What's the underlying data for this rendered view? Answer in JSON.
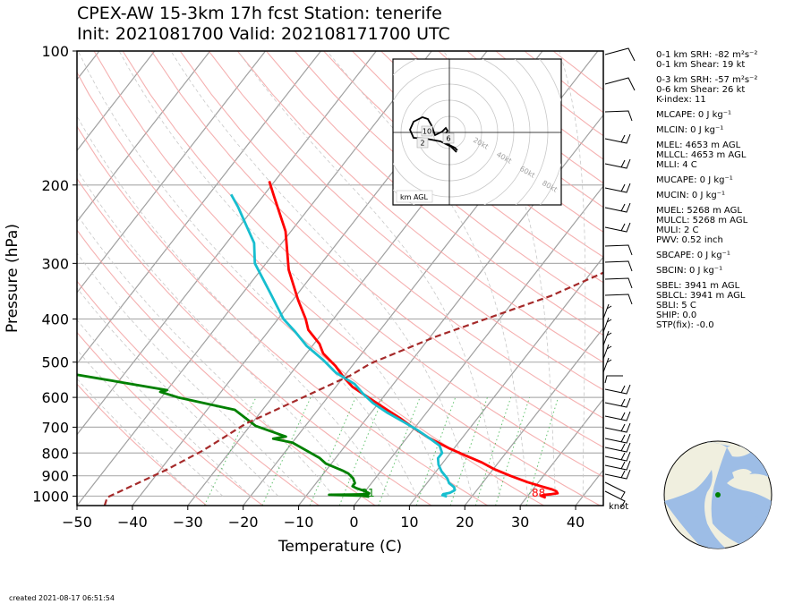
{
  "title_line1": "CPEX-AW 15-3km  17h fcst  Station: tenerife",
  "title_line2": "Init: 2021081700  Valid: 202108171700 UTC",
  "created": "created 2021-08-17 06:51:54",
  "stats": [
    {
      "text": "0-1 km SRH: -82 m²s⁻²",
      "gap": false
    },
    {
      "text": "0-1 km Shear: 19 kt",
      "gap": false
    },
    {
      "text": "0-3 km SRH: -57 m²s⁻²",
      "gap": true
    },
    {
      "text": "0-6 km Shear: 26 kt",
      "gap": false
    },
    {
      "text": "K-index: 11",
      "gap": false
    },
    {
      "text": "MLCAPE: 0 J kg⁻¹",
      "gap": true
    },
    {
      "text": "MLCIN: 0 J kg⁻¹",
      "gap": true
    },
    {
      "text": "MLEL: 4653 m AGL",
      "gap": true
    },
    {
      "text": "MLLCL: 4653 m AGL",
      "gap": false
    },
    {
      "text": "MLLI: 4 C",
      "gap": false
    },
    {
      "text": "MUCAPE: 0 J kg⁻¹",
      "gap": true
    },
    {
      "text": "MUCIN: 0 J kg⁻¹",
      "gap": true
    },
    {
      "text": "MUEL: 5268 m AGL",
      "gap": true
    },
    {
      "text": "MULCL: 5268 m AGL",
      "gap": false
    },
    {
      "text": "MULI: 2 C",
      "gap": false
    },
    {
      "text": "PWV: 0.52 inch",
      "gap": false
    },
    {
      "text": "SBCAPE: 0 J kg⁻¹",
      "gap": true
    },
    {
      "text": "SBCIN: 0 J kg⁻¹",
      "gap": true
    },
    {
      "text": "SBEL: 3941 m AGL",
      "gap": true
    },
    {
      "text": "SBLCL: 3941 m AGL",
      "gap": false
    },
    {
      "text": "SBLI: 5 C",
      "gap": false
    },
    {
      "text": "SHIP: 0.0",
      "gap": false
    },
    {
      "text": "STP(fix): -0.0",
      "gap": false
    }
  ],
  "chart_data": {
    "type": "line",
    "subtype": "skew-T log-P",
    "xlabel": "Temperature (C)",
    "ylabel": "Pressure (hPa)",
    "xlim": [
      -50,
      45
    ],
    "ylim": [
      1050,
      100
    ],
    "log_y": true,
    "xticks": [
      "−50",
      "−40",
      "−30",
      "−20",
      "−10",
      "0",
      "10",
      "20",
      "30",
      "40"
    ],
    "yticks": [
      "100",
      "200",
      "300",
      "400",
      "500",
      "600",
      "700",
      "800",
      "900",
      "1000"
    ],
    "colors": {
      "temperature": "#ff0000",
      "dewpoint": "#008000",
      "wetbulb": "#17becf",
      "parcel": "#a52a2a",
      "isotherm": "#a0a0a0",
      "dry_adiabat": "#f4a7a7",
      "mixing_ratio": "#3cb44b"
    },
    "series": [
      {
        "key": "temperature",
        "points": [
          [
            33.5,
            1008
          ],
          [
            32.3,
            998
          ],
          [
            33,
            993
          ],
          [
            34,
            990
          ],
          [
            35,
            985
          ],
          [
            34.5,
            975
          ],
          [
            33.5,
            966
          ],
          [
            31,
            950
          ],
          [
            28,
            930
          ],
          [
            24,
            900
          ],
          [
            20,
            868
          ],
          [
            17,
            840
          ],
          [
            13,
            810
          ],
          [
            9,
            780
          ],
          [
            4,
            740
          ],
          [
            -0.5,
            700
          ],
          [
            -4,
            668
          ],
          [
            -8,
            636
          ],
          [
            -12,
            605
          ],
          [
            -17,
            568
          ],
          [
            -20,
            540
          ],
          [
            -23,
            510
          ],
          [
            -27,
            478
          ],
          [
            -29,
            455
          ],
          [
            -33,
            423
          ],
          [
            -35,
            400
          ],
          [
            -39,
            363
          ],
          [
            -45,
            310
          ],
          [
            -51,
            254
          ],
          [
            -58,
            212
          ],
          [
            -61,
            196
          ]
        ]
      },
      {
        "key": "wetbulb",
        "points": [
          [
            15.5,
            1002
          ],
          [
            14.5,
            995
          ],
          [
            14.5,
            990
          ],
          [
            15.5,
            983
          ],
          [
            16,
            970
          ],
          [
            15.5,
            955
          ],
          [
            14,
            935
          ],
          [
            13,
            912
          ],
          [
            11,
            880
          ],
          [
            9.5,
            850
          ],
          [
            8.5,
            822
          ],
          [
            8.5,
            800
          ],
          [
            7,
            770
          ],
          [
            4,
            740
          ],
          [
            1,
            712
          ],
          [
            -3,
            680
          ],
          [
            -7,
            650
          ],
          [
            -11,
            618
          ],
          [
            -14,
            590
          ],
          [
            -17,
            560
          ],
          [
            -22,
            528
          ],
          [
            -26,
            495
          ],
          [
            -31,
            460
          ],
          [
            -35,
            428
          ],
          [
            -39,
            400
          ],
          [
            -45,
            350
          ],
          [
            -52,
            300
          ],
          [
            -55,
            270
          ],
          [
            -63,
            224
          ],
          [
            -66,
            210
          ]
        ]
      },
      {
        "key": "dewpoint",
        "points": [
          [
            1.5,
            1003
          ],
          [
            0,
            998
          ],
          [
            -6,
            993
          ],
          [
            -2,
            992
          ],
          [
            1,
            990
          ],
          [
            1,
            985
          ],
          [
            0,
            975
          ],
          [
            -2,
            960
          ],
          [
            -3,
            950
          ],
          [
            -3,
            935
          ],
          [
            -4,
            912
          ],
          [
            -5.5,
            890
          ],
          [
            -7,
            876
          ],
          [
            -11,
            845
          ],
          [
            -13,
            820
          ],
          [
            -20,
            758
          ],
          [
            -24,
            743
          ],
          [
            -22,
            735
          ],
          [
            -29,
            695
          ],
          [
            -35,
            640
          ],
          [
            -47,
            600
          ],
          [
            -51,
            583
          ],
          [
            -50,
            578
          ],
          [
            -70,
            530
          ],
          [
            -84,
            430
          ],
          [
            -85,
            426
          ],
          [
            -89,
            380
          ],
          [
            -93,
            340
          ],
          [
            -96,
            320
          ],
          [
            -102,
            290
          ],
          [
            -101,
            283
          ],
          [
            -102,
            272
          ]
        ]
      },
      {
        "key": "parcel",
        "points": [
          [
            -45,
            1050
          ],
          [
            -45.7,
            1006
          ],
          [
            -39,
            875
          ],
          [
            -35,
            789
          ],
          [
            -33,
            736
          ],
          [
            -31,
            686
          ],
          [
            -29,
            659
          ],
          [
            -19,
            536
          ],
          [
            -17,
            503
          ],
          [
            -9,
            438
          ],
          [
            -2.5,
            400
          ],
          [
            6,
            355
          ],
          [
            14,
            304
          ],
          [
            23,
            260
          ],
          [
            32,
            225
          ],
          [
            41,
            195
          ],
          [
            50,
            171
          ],
          [
            59,
            150
          ],
          [
            68,
            132
          ],
          [
            76,
            117
          ]
        ]
      }
    ],
    "data_labels": [
      {
        "text": "31",
        "x": 1.5,
        "p": 1012,
        "color": "#008000"
      },
      {
        "text": "88",
        "x": 32.3,
        "p": 1012,
        "color": "#ff0000"
      }
    ],
    "wind_unit": "knot",
    "hodograph": {
      "label": "km AGL",
      "ring_labels": [
        "20kt",
        "40kt",
        "60kt",
        "80kt"
      ],
      "height_labels": [
        "10",
        "2",
        "6"
      ]
    },
    "globe": {
      "station_color": "#008000"
    }
  }
}
